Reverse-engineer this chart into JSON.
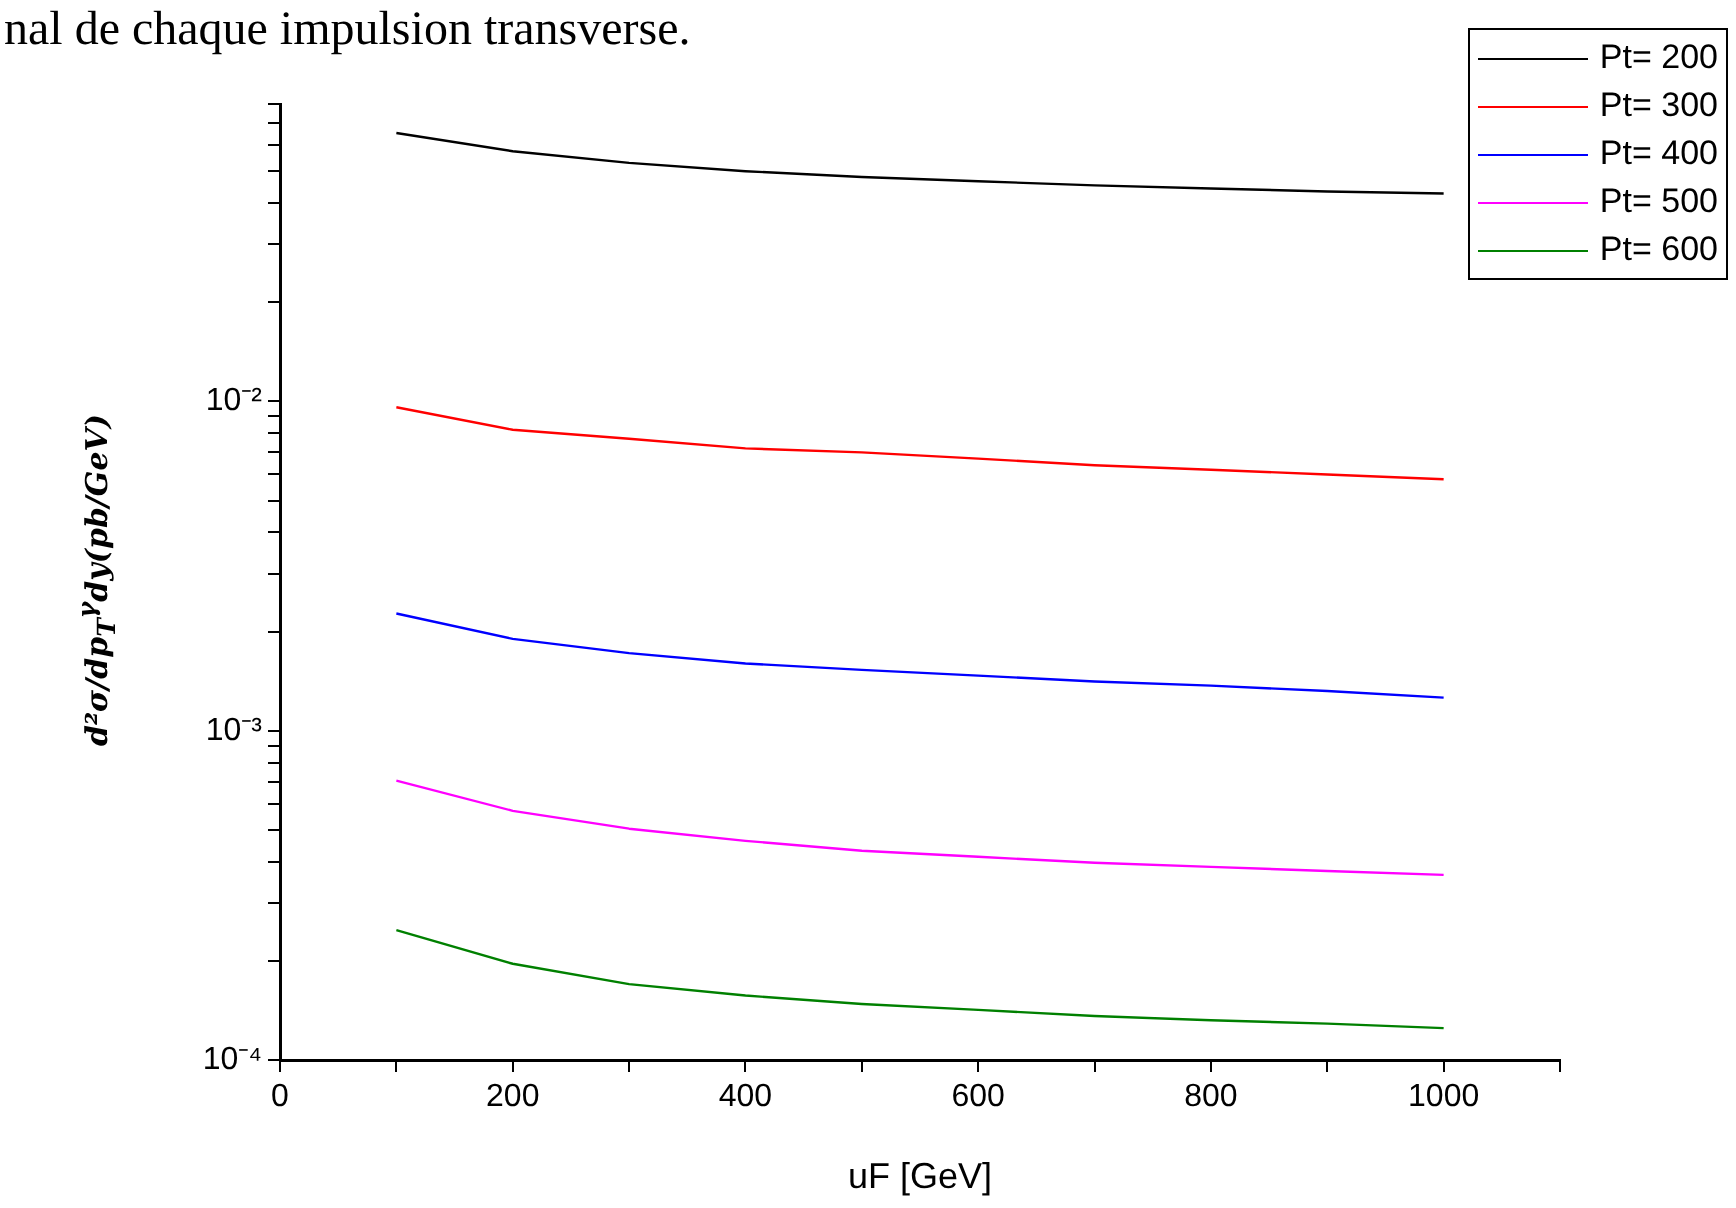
{
  "chart_data": {
    "type": "line",
    "xlabel": "uF [GeV]",
    "ylabel": "d²σ/dp$_{T}$$^{γ}$dy(pb/GeV)",
    "annotations": [
      "nal de chaque impulsion transverse."
    ],
    "x": [
      100,
      200,
      300,
      400,
      500,
      600,
      700,
      800,
      900,
      1000
    ],
    "series": [
      {
        "name": "Pt= 200",
        "color": "#000000",
        "values": [
          0.0653,
          0.0575,
          0.053,
          0.05,
          0.048,
          0.0466,
          0.0453,
          0.0443,
          0.0434,
          0.0428
        ]
      },
      {
        "name": "Pt= 300",
        "color": "#ff0000",
        "values": [
          0.0096,
          0.0082,
          0.0077,
          0.0072,
          0.007,
          0.0067,
          0.0064,
          0.0062,
          0.006,
          0.0058
        ]
      },
      {
        "name": "Pt= 400",
        "color": "#0000ff",
        "values": [
          0.00227,
          0.0019,
          0.00172,
          0.0016,
          0.00153,
          0.00147,
          0.00141,
          0.00137,
          0.00132,
          0.00126
        ]
      },
      {
        "name": "Pt= 500",
        "color": "#ff00ff",
        "values": [
          0.000705,
          0.000571,
          0.000504,
          0.000463,
          0.000432,
          0.000414,
          0.000397,
          0.000386,
          0.000375,
          0.000365
        ]
      },
      {
        "name": "Pt= 600",
        "color": "#008000",
        "values": [
          0.000248,
          0.000196,
          0.00017,
          0.000157,
          0.000148,
          0.000142,
          0.000136,
          0.000132,
          0.000129,
          0.000125
        ]
      }
    ],
    "log": "y",
    "xlim": [
      0,
      1100
    ],
    "ylim": [
      0.0001,
      0.08
    ],
    "xticks": [
      0,
      {
        "value": 100,
        "label": null
      },
      200,
      {
        "value": 300,
        "label": null
      },
      400,
      {
        "value": 500,
        "label": null
      },
      600,
      {
        "value": 700,
        "label": null
      },
      800,
      {
        "value": 900,
        "label": null
      },
      1000,
      {
        "value": 1100,
        "label": null
      }
    ],
    "yticks": [
      {
        "value": 0.0001,
        "label": "10⁻⁴"
      },
      {
        "value": 0.0002,
        "label": null
      },
      {
        "value": 0.0003,
        "label": null
      },
      {
        "value": 0.0004,
        "label": null
      },
      {
        "value": 0.0005,
        "label": null
      },
      {
        "value": 0.0006,
        "label": null
      },
      {
        "value": 0.0007,
        "label": null
      },
      {
        "value": 0.0008,
        "label": null
      },
      {
        "value": 0.0009,
        "label": null
      },
      {
        "value": 0.001,
        "label": "10⁻³"
      },
      {
        "value": 0.002,
        "label": null
      },
      {
        "value": 0.003,
        "label": null
      },
      {
        "value": 0.004,
        "label": null
      },
      {
        "value": 0.005,
        "label": null
      },
      {
        "value": 0.006,
        "label": null
      },
      {
        "value": 0.007,
        "label": null
      },
      {
        "value": 0.008,
        "label": null
      },
      {
        "value": 0.009,
        "label": null
      },
      {
        "value": 0.01,
        "label": "10⁻²"
      },
      {
        "value": 0.02,
        "label": null
      },
      {
        "value": 0.03,
        "label": null
      },
      {
        "value": 0.04,
        "label": null
      },
      {
        "value": 0.05,
        "label": null
      },
      {
        "value": 0.06,
        "label": null
      },
      {
        "value": 0.07,
        "label": null
      },
      {
        "value": 0.08,
        "label": null
      }
    ],
    "grid": false,
    "legend": "top right",
    "marker": "none",
    "line_style": "solid"
  }
}
